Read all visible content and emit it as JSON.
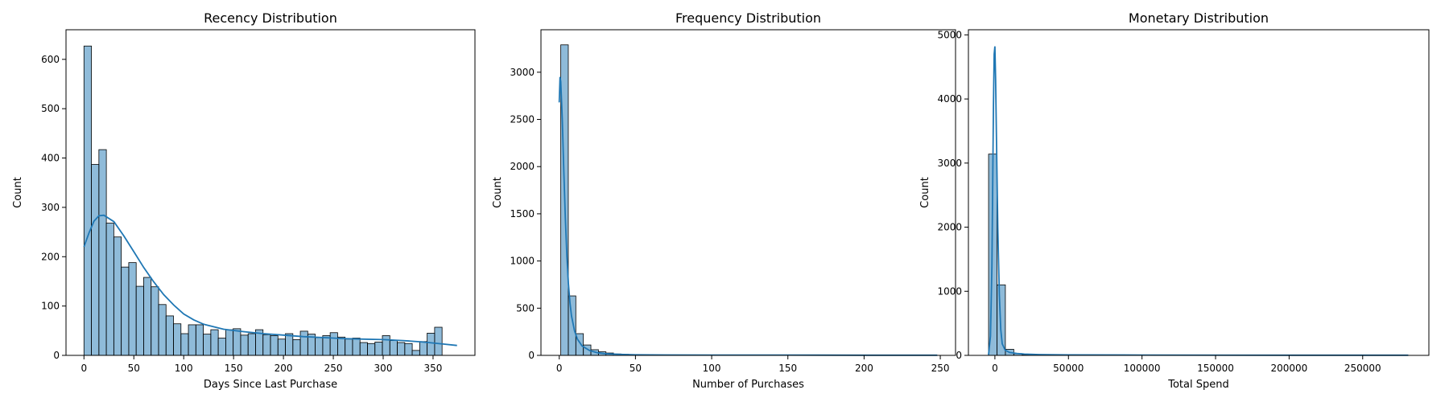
{
  "chart_data": [
    {
      "type": "bar",
      "title": "Recency Distribution",
      "xlabel": "Days Since Last Purchase",
      "ylabel": "Count",
      "xlim": [
        -18,
        392
      ],
      "ylim": [
        0,
        660
      ],
      "xticks": [
        0,
        50,
        100,
        150,
        200,
        250,
        300,
        350
      ],
      "yticks": [
        0,
        100,
        200,
        300,
        400,
        500,
        600
      ],
      "grid": false,
      "bar_color": "#1f77b4",
      "bins": {
        "start": 0,
        "width": 7.48,
        "counts": [
          627,
          387,
          417,
          268,
          240,
          179,
          188,
          140,
          158,
          139,
          103,
          80,
          64,
          44,
          62,
          62,
          43,
          52,
          35,
          52,
          54,
          41,
          44,
          52,
          42,
          40,
          33,
          44,
          32,
          49,
          43,
          36,
          40,
          46,
          37,
          33,
          35,
          26,
          24,
          27,
          40,
          30,
          26,
          24,
          10,
          28,
          45,
          57
        ]
      },
      "kde": {
        "x": [
          0,
          5,
          10,
          15,
          20,
          30,
          40,
          50,
          60,
          70,
          80,
          90,
          100,
          110,
          120,
          140,
          160,
          180,
          200,
          220,
          240,
          260,
          280,
          300,
          320,
          340,
          360,
          374
        ],
        "y": [
          220,
          248,
          272,
          283,
          284,
          271,
          242,
          210,
          178,
          149,
          123,
          102,
          84,
          72,
          63,
          53,
          48,
          44,
          41,
          38,
          36,
          34,
          33,
          32,
          30,
          27,
          23,
          20
        ]
      }
    },
    {
      "type": "bar",
      "title": "Frequency Distribution",
      "xlabel": "Number of Purchases",
      "ylabel": "Count",
      "xlim": [
        -12,
        260
      ],
      "ylim": [
        0,
        3450
      ],
      "xticks": [
        0,
        50,
        100,
        150,
        200,
        250
      ],
      "yticks": [
        0,
        500,
        1000,
        1500,
        2000,
        2500,
        3000
      ],
      "grid": false,
      "bar_color": "#1f77b4",
      "bins": {
        "start": 1,
        "width": 4.94,
        "counts": [
          3290,
          630,
          230,
          110,
          60,
          38,
          25,
          15,
          11,
          8,
          6,
          5,
          4,
          3,
          3,
          2,
          2,
          2,
          1,
          1,
          1,
          1,
          1,
          1,
          1,
          1,
          1,
          1,
          1,
          1,
          1,
          1,
          1,
          1,
          1,
          1,
          1,
          1,
          1,
          1,
          1,
          1,
          1,
          1,
          1,
          1,
          1,
          1,
          1,
          1
        ]
      },
      "kde": {
        "x": [
          0,
          0.5,
          1,
          2,
          3,
          4,
          5,
          6,
          7,
          8,
          10,
          12,
          15,
          20,
          25,
          30,
          40,
          50,
          70,
          100,
          150,
          200,
          248
        ],
        "y": [
          2680,
          2950,
          2900,
          2500,
          1950,
          1450,
          1050,
          760,
          560,
          420,
          260,
          170,
          100,
          50,
          28,
          18,
          10,
          6,
          4,
          3,
          3,
          2,
          2
        ]
      }
    },
    {
      "type": "bar",
      "title": "Monetary Distribution",
      "xlabel": "Total Spend",
      "ylabel": "Count",
      "xlim": [
        -18000,
        295000
      ],
      "ylim": [
        0,
        5080
      ],
      "xticks": [
        0,
        50000,
        100000,
        150000,
        200000,
        250000
      ],
      "yticks": [
        0,
        1000,
        2000,
        3000,
        4000,
        5000
      ],
      "grid": false,
      "bar_color": "#1f77b4",
      "bins": {
        "start": -4300,
        "width": 5710,
        "counts": [
          3140,
          1100,
          95,
          28,
          12,
          8,
          5,
          4,
          3,
          3,
          2,
          2,
          2,
          1,
          1,
          1,
          1,
          1,
          1,
          1,
          1,
          1,
          1,
          1,
          1,
          1,
          1,
          1,
          1,
          1,
          1,
          1,
          1,
          1,
          1,
          1,
          1,
          1,
          1,
          1,
          1,
          1,
          1,
          1,
          1,
          1,
          1,
          1,
          1,
          1
        ]
      },
      "kde": {
        "x": [
          -4300,
          -3000,
          -2000,
          -1500,
          -1000,
          -500,
          0,
          500,
          1000,
          2000,
          3000,
          4000,
          5000,
          7000,
          10000,
          15000,
          20000,
          30000,
          50000,
          100000,
          200000,
          281000
        ],
        "y": [
          10,
          300,
          1400,
          2700,
          3900,
          4700,
          4820,
          4300,
          3500,
          2000,
          950,
          400,
          180,
          80,
          45,
          30,
          20,
          12,
          8,
          5,
          3,
          2
        ]
      }
    }
  ]
}
